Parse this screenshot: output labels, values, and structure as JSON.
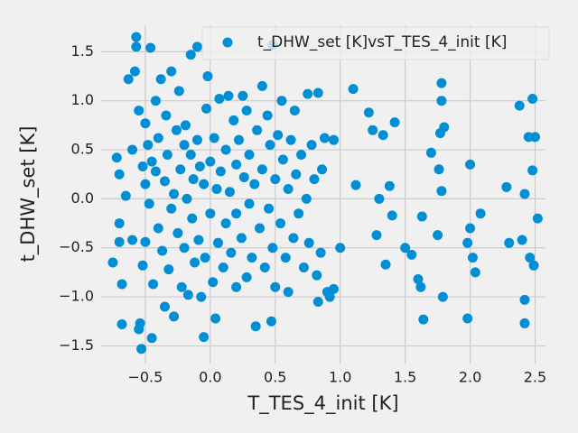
{
  "chart_data": {
    "type": "scatter",
    "xlabel": "T_TES_4_init [K]",
    "ylabel": "t_DHW_set [K]",
    "xlim": [
      -0.84,
      2.58
    ],
    "ylim": [
      -1.68,
      1.77
    ],
    "xticks": [
      {
        "value": -0.5,
        "label": "−0.5"
      },
      {
        "value": 0.0,
        "label": "0.0"
      },
      0.5,
      {
        "value": 1.0,
        "label": "1.0"
      },
      1.5,
      {
        "value": 2.0,
        "label": "2.0"
      },
      2.5
    ],
    "yticks": [
      {
        "value": -1.5,
        "label": "−1.5"
      },
      {
        "value": -1.0,
        "label": "−1.0"
      },
      {
        "value": -0.5,
        "label": "−0.5"
      },
      {
        "value": 0.0,
        "label": "0.0"
      },
      0.5,
      {
        "value": 1.0,
        "label": "1.0"
      },
      1.5
    ],
    "grid": true,
    "legend": "upper right",
    "series": [
      {
        "name": "t_DHW_set [K]vsT_TES_4_init [K]",
        "color": "#008fd5",
        "x": [
          -0.75,
          -0.72,
          -0.7,
          -0.7,
          -0.7,
          -0.68,
          -0.68,
          -0.65,
          -0.63,
          -0.6,
          -0.6,
          -0.58,
          -0.57,
          -0.57,
          -0.55,
          -0.55,
          -0.54,
          -0.53,
          -0.52,
          -0.52,
          -0.5,
          -0.5,
          -0.5,
          -0.48,
          -0.47,
          -0.46,
          -0.45,
          -0.45,
          -0.44,
          -0.42,
          -0.42,
          -0.4,
          -0.4,
          -0.38,
          -0.37,
          -0.35,
          -0.35,
          -0.34,
          -0.33,
          -0.32,
          -0.3,
          -0.3,
          -0.28,
          -0.28,
          -0.26,
          -0.25,
          -0.24,
          -0.23,
          -0.22,
          -0.2,
          -0.2,
          -0.19,
          -0.18,
          -0.17,
          -0.15,
          -0.15,
          -0.14,
          -0.13,
          -0.12,
          -0.1,
          -0.1,
          -0.09,
          -0.08,
          -0.07,
          -0.05,
          -0.05,
          -0.04,
          -0.03,
          -0.02,
          0.0,
          0.0,
          0.02,
          0.03,
          0.04,
          0.05,
          0.06,
          0.07,
          0.08,
          0.1,
          0.12,
          0.12,
          0.14,
          0.15,
          0.16,
          0.18,
          0.2,
          0.2,
          0.2,
          0.22,
          0.24,
          0.25,
          0.26,
          0.28,
          0.28,
          0.3,
          0.3,
          0.32,
          0.34,
          0.35,
          0.36,
          0.38,
          0.4,
          0.4,
          0.42,
          0.44,
          0.45,
          0.46,
          0.48,
          0.47,
          0.48,
          0.5,
          0.5,
          0.52,
          0.54,
          0.55,
          0.56,
          0.58,
          0.6,
          0.6,
          0.62,
          0.64,
          0.65,
          0.66,
          0.68,
          0.7,
          0.72,
          0.74,
          0.75,
          0.76,
          0.78,
          0.8,
          0.82,
          0.83,
          0.83,
          0.85,
          0.86,
          0.88,
          0.9,
          0.92,
          0.95,
          0.95,
          1.0,
          1.1,
          1.12,
          1.22,
          1.25,
          1.28,
          1.3,
          1.33,
          1.35,
          1.38,
          1.4,
          1.42,
          1.5,
          1.55,
          1.6,
          1.62,
          1.63,
          1.64,
          1.7,
          1.75,
          1.76,
          1.77,
          1.78,
          1.78,
          1.78,
          1.79,
          1.8,
          1.98,
          1.98,
          2.0,
          2.0,
          2.02,
          2.04,
          2.08,
          2.28,
          2.3,
          2.38,
          2.4,
          2.42,
          2.42,
          2.42,
          2.45,
          2.46,
          2.48,
          2.48,
          2.49,
          2.5,
          2.52
        ],
        "values": [
          -0.65,
          0.42,
          0.25,
          -0.25,
          -0.44,
          -0.87,
          -1.28,
          0.03,
          1.22,
          0.5,
          -0.42,
          1.3,
          1.55,
          1.65,
          0.9,
          -1.33,
          -1.27,
          -1.53,
          0.33,
          -0.68,
          0.77,
          0.15,
          -0.44,
          0.55,
          -0.05,
          1.54,
          -1.42,
          0.38,
          -0.87,
          1.0,
          0.28,
          -0.3,
          0.62,
          1.22,
          -0.53,
          0.18,
          -1.1,
          0.85,
          0.45,
          -0.72,
          1.3,
          -0.1,
          0.05,
          -1.2,
          0.7,
          -0.35,
          1.1,
          0.3,
          -0.9,
          0.55,
          -0.5,
          0.75,
          0.0,
          -0.98,
          0.45,
          1.47,
          -0.2,
          0.2,
          -0.65,
          1.55,
          0.6,
          -0.42,
          0.33,
          -1.0,
          -1.41,
          0.15,
          -0.6,
          0.92,
          1.25,
          0.38,
          -0.15,
          -0.85,
          0.62,
          -1.22,
          0.1,
          -0.45,
          1.02,
          0.28,
          -0.7,
          0.5,
          -0.25,
          1.05,
          0.07,
          -0.55,
          0.8,
          -0.15,
          0.35,
          -0.9,
          0.6,
          -0.4,
          1.05,
          0.22,
          -0.8,
          0.9,
          -0.05,
          0.45,
          -0.6,
          0.15,
          -1.3,
          0.7,
          -0.3,
          1.15,
          0.3,
          -0.7,
          0.85,
          -0.1,
          0.55,
          -0.5,
          -1.25,
          1.57,
          0.2,
          -0.9,
          0.65,
          -0.25,
          1.0,
          0.4,
          -0.6,
          0.1,
          -0.95,
          0.6,
          -0.4,
          0.9,
          0.25,
          -0.15,
          0.45,
          -0.7,
          0.0,
          1.07,
          -0.45,
          0.55,
          0.2,
          -0.78,
          1.08,
          -1.05,
          -0.55,
          0.3,
          0.62,
          -0.95,
          -1.0,
          0.6,
          -0.92,
          -0.5,
          1.12,
          0.14,
          0.88,
          0.7,
          -0.37,
          0.0,
          0.65,
          -0.67,
          0.13,
          -0.17,
          0.78,
          -0.5,
          -0.57,
          -0.82,
          -0.9,
          -0.18,
          -1.23,
          0.47,
          -0.37,
          0.3,
          0.67,
          1.0,
          1.18,
          0.08,
          -1.0,
          0.73,
          -0.45,
          -1.22,
          0.35,
          -0.3,
          -0.6,
          -0.75,
          -0.15,
          0.12,
          -0.45,
          0.95,
          -0.42,
          0.05,
          -1.03,
          -1.27,
          0.63,
          -0.6,
          1.02,
          0.29,
          -0.68,
          0.63,
          -0.2
        ]
      }
    ]
  }
}
